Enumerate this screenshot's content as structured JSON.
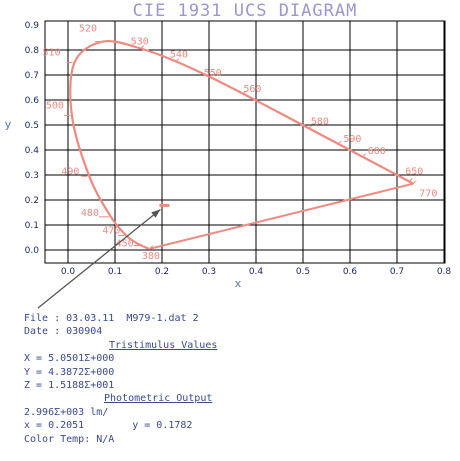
{
  "chart_data": {
    "type": "scatter",
    "title": "CIE 1931 UCS DIAGRAM",
    "xlabel": "x",
    "ylabel": "y",
    "xlim": [
      0.0,
      0.8
    ],
    "ylim": [
      0.0,
      0.9
    ],
    "x_ticks": [
      "0.0",
      "0.1",
      "0.2",
      "0.3",
      "0.4",
      "0.5",
      "0.6",
      "0.7",
      "0.8"
    ],
    "y_ticks": [
      "0.0",
      "0.1",
      "0.2",
      "0.3",
      "0.4",
      "0.5",
      "0.6",
      "0.7",
      "0.8",
      "0.9"
    ],
    "grid": true,
    "spectral_locus": [
      [
        0.1741,
        0.005
      ],
      [
        0.1738,
        0.0049
      ],
      [
        0.1736,
        0.0049
      ],
      [
        0.1733,
        0.0048
      ],
      [
        0.1726,
        0.0048
      ],
      [
        0.1714,
        0.0051
      ],
      [
        0.1689,
        0.0069
      ],
      [
        0.1644,
        0.0109
      ],
      [
        0.1566,
        0.0177
      ],
      [
        0.144,
        0.0297
      ],
      [
        0.1241,
        0.0578
      ],
      [
        0.0913,
        0.1327
      ],
      [
        0.0454,
        0.295
      ],
      [
        0.0082,
        0.5384
      ],
      [
        0.0139,
        0.7502
      ],
      [
        0.0743,
        0.8338
      ],
      [
        0.1547,
        0.8059
      ],
      [
        0.2296,
        0.7543
      ],
      [
        0.3016,
        0.6923
      ],
      [
        0.3731,
        0.6245
      ],
      [
        0.4441,
        0.5547
      ],
      [
        0.5125,
        0.4866
      ],
      [
        0.5752,
        0.4242
      ],
      [
        0.627,
        0.3725
      ],
      [
        0.6658,
        0.334
      ],
      [
        0.6915,
        0.3083
      ],
      [
        0.7079,
        0.292
      ],
      [
        0.719,
        0.2809
      ],
      [
        0.726,
        0.274
      ],
      [
        0.7347,
        0.2653
      ]
    ],
    "wavelength_labels": [
      {
        "text": "380",
        "x": 0.1741,
        "y": 0.005
      },
      {
        "text": "450",
        "x": 0.1566,
        "y": 0.0177
      },
      {
        "text": "470",
        "x": 0.1241,
        "y": 0.0578
      },
      {
        "text": "480",
        "x": 0.0913,
        "y": 0.1327
      },
      {
        "text": "490",
        "x": 0.0454,
        "y": 0.295
      },
      {
        "text": "500",
        "x": 0.0082,
        "y": 0.5384
      },
      {
        "text": "510",
        "x": 0.0139,
        "y": 0.7502
      },
      {
        "text": "520",
        "x": 0.0743,
        "y": 0.8338
      },
      {
        "text": "530",
        "x": 0.1547,
        "y": 0.8059
      },
      {
        "text": "540",
        "x": 0.2296,
        "y": 0.7543
      },
      {
        "text": "550",
        "x": 0.3016,
        "y": 0.6923
      },
      {
        "text": "560",
        "x": 0.3731,
        "y": 0.6245
      },
      {
        "text": "580",
        "x": 0.5125,
        "y": 0.4866
      },
      {
        "text": "590",
        "x": 0.5752,
        "y": 0.4242
      },
      {
        "text": "600",
        "x": 0.627,
        "y": 0.3725
      },
      {
        "text": "650",
        "x": 0.726,
        "y": 0.274
      },
      {
        "text": "770",
        "x": 0.7347,
        "y": 0.2653
      }
    ],
    "measured_point": {
      "x": 0.2051,
      "y": 0.1782
    }
  },
  "colors": {
    "title": "#9d96cf",
    "locus": "#ef8a80",
    "grid": "#000000",
    "tick_text": "#1e2a63",
    "axis_label": "#5d76b6",
    "arrow": "#555555",
    "info_text": "#3b4a8e"
  },
  "info": {
    "file_line": "File : 03.03.11  M979-1.dat 2",
    "date_line": "Date : 030904",
    "tristimulus_header": "Tristimulus Values",
    "X_line": "X = 5.0501Σ+000",
    "Y_line": "Y = 4.3872Σ+000",
    "Z_line": "Z = 1.5188Σ+001",
    "photometric_header": "Photometric Output",
    "lm_line": "2.996Σ+003 lm/",
    "x_line": "x = 0.2051",
    "y_line": "y = 0.1782",
    "color_temp_line": "Color Temp: N/A"
  }
}
